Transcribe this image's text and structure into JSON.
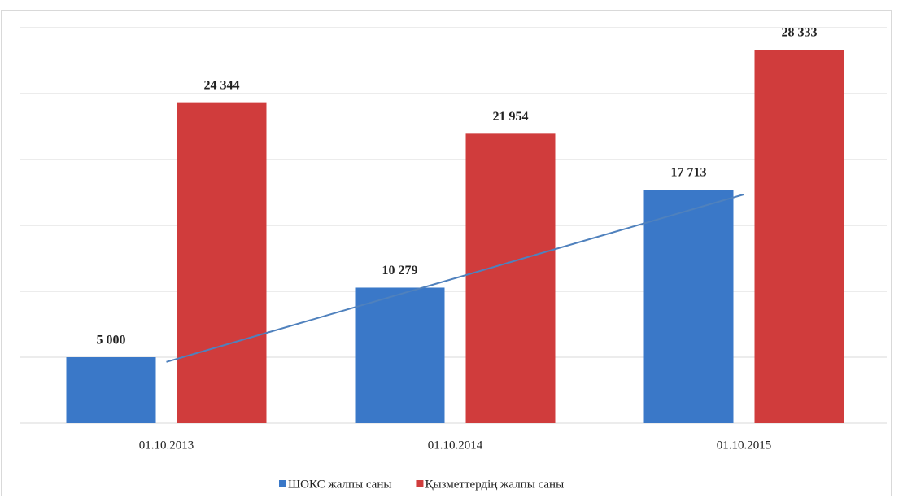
{
  "chart_data": {
    "type": "bar",
    "categories": [
      "01.10.2013",
      "01.10.2014",
      "01.10.2015"
    ],
    "series": [
      {
        "name": "ШОКС жалпы саны",
        "color": "#3a78c8",
        "values": [
          5000,
          10279,
          17713
        ],
        "value_labels": [
          "5 000",
          "10 279",
          "17 713"
        ],
        "trendline": "linear",
        "trendline_color": "#4f81bd"
      },
      {
        "name": "Қызметтердің жалпы саны",
        "color": "#d03c3c",
        "values": [
          24344,
          21954,
          28333
        ],
        "value_labels": [
          "24 344",
          "21 954",
          "28 333"
        ]
      }
    ],
    "ylim": [
      0,
      30000
    ],
    "yticks": [
      0,
      5000,
      10000,
      15000,
      20000,
      25000,
      30000
    ],
    "ytick_labels": false,
    "grid": true,
    "legend": "bottom"
  }
}
